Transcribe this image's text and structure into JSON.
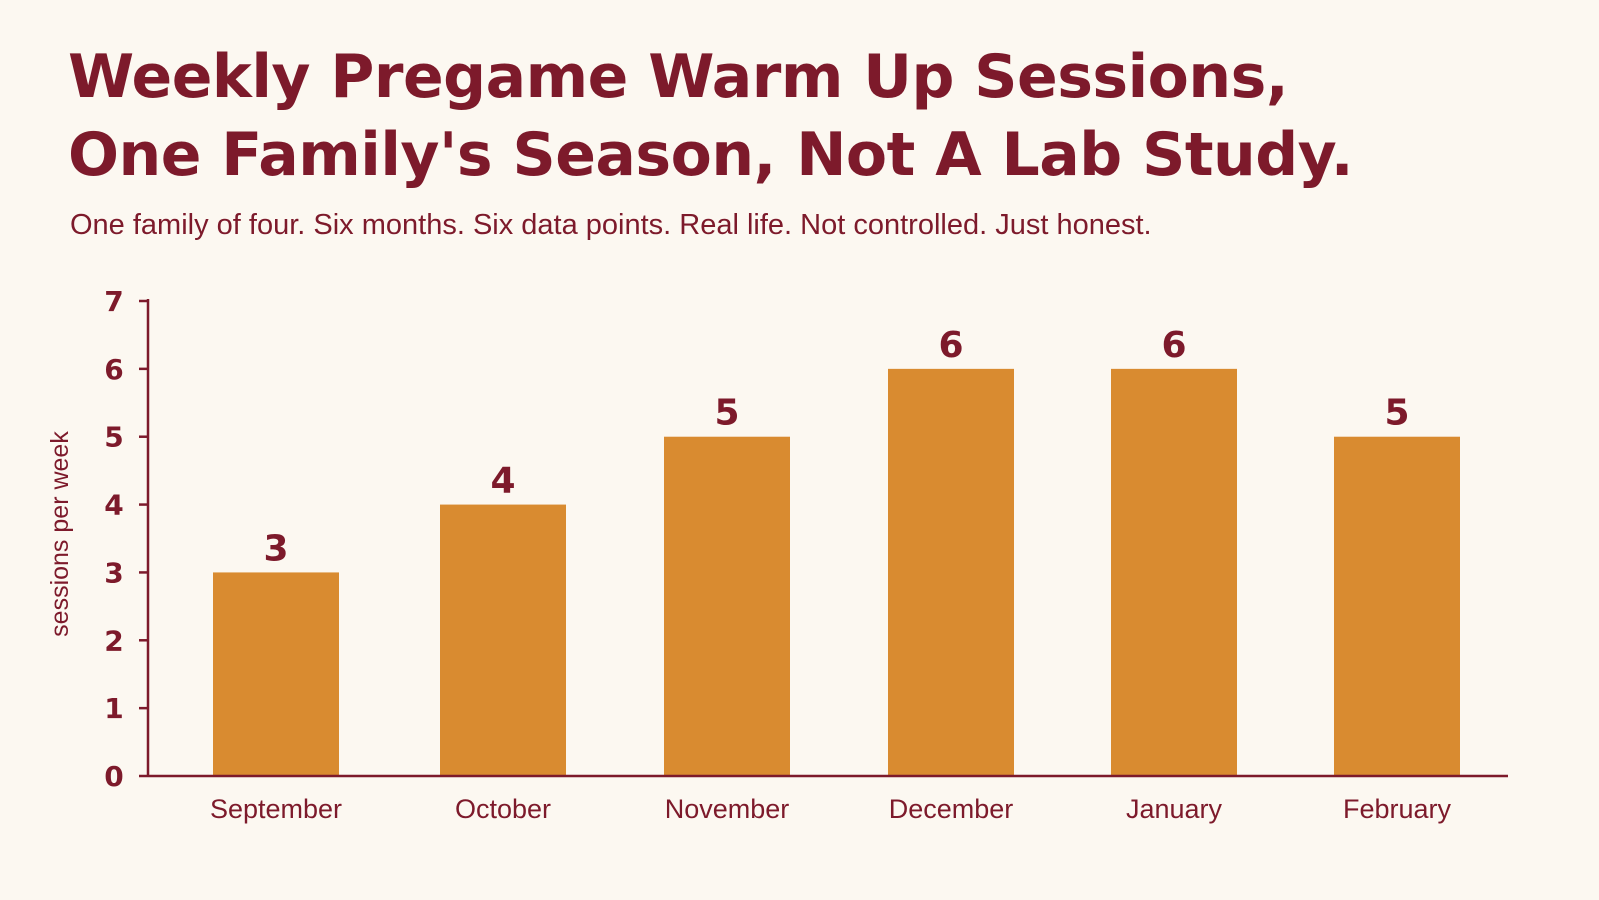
{
  "header": {
    "title_line_1": "Weekly Pregame Warm Up Sessions,",
    "title_line_2": "One Family's Season, Not A Lab Study.",
    "subtitle": "One family of four. Six months. Six data points. Real life. Not controlled. Just honest."
  },
  "colors": {
    "bar": "#d98b30",
    "text": "#7d1a2b",
    "axis": "#7d1a2b",
    "background": "#fcf8f1"
  },
  "chart_data": {
    "type": "bar",
    "title": "Weekly Pregame Warm Up Sessions, One Family's Season, Not A Lab Study.",
    "subtitle": "One family of four. Six months. Six data points. Real life. Not controlled. Just honest.",
    "categories": [
      "September",
      "October",
      "November",
      "December",
      "January",
      "February"
    ],
    "values": [
      3,
      4,
      5,
      6,
      6,
      5
    ],
    "data_labels": [
      "3",
      "4",
      "5",
      "6",
      "6",
      "5"
    ],
    "xlabel": "",
    "ylabel": "sessions per week",
    "ylim": [
      0,
      7
    ],
    "yticks": [
      "0",
      "1",
      "2",
      "3",
      "4",
      "5",
      "6",
      "7"
    ],
    "grid": false,
    "legend": "none"
  }
}
